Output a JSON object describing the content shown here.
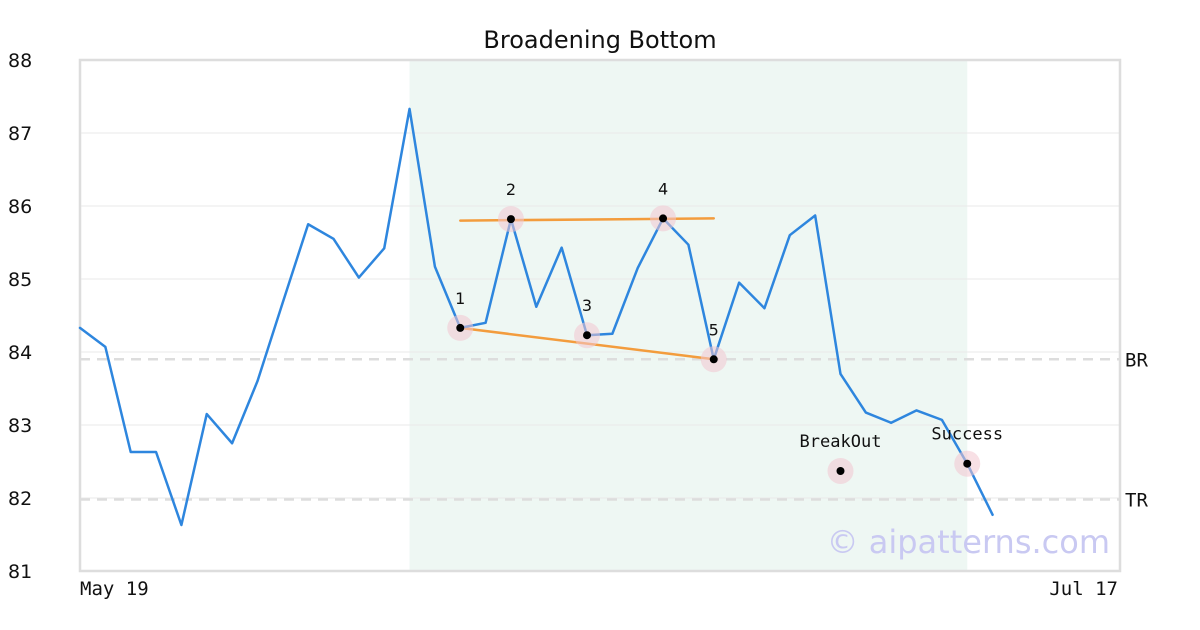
{
  "chart_data": {
    "type": "line",
    "title": "Broadening Bottom",
    "ylim": [
      81,
      88
    ],
    "yticks": [
      81,
      82,
      83,
      84,
      85,
      86,
      87,
      88
    ],
    "x_tick_labels": [
      "May 19",
      "Jul 17"
    ],
    "grid": true,
    "series": [
      {
        "color": "#2e86de",
        "values": [
          84.33,
          84.07,
          82.63,
          82.63,
          81.63,
          83.15,
          82.75,
          83.6,
          84.68,
          85.75,
          85.55,
          85.02,
          85.42,
          87.33,
          85.17,
          84.33,
          84.4,
          85.82,
          84.62,
          85.43,
          84.23,
          84.25,
          85.15,
          85.83,
          85.47,
          83.9,
          84.95,
          84.6,
          85.6,
          85.87,
          83.7,
          83.17,
          83.03,
          83.2,
          83.07,
          82.47,
          81.77
        ]
      }
    ],
    "pattern_region": {
      "x_start": 13,
      "x_end": 35,
      "color": "#eef7f3"
    },
    "trendlines": [
      {
        "color": "#f39c3d",
        "x": [
          15,
          25
        ],
        "y": [
          85.8,
          85.83
        ]
      },
      {
        "color": "#f39c3d",
        "x": [
          15,
          25
        ],
        "y": [
          84.33,
          83.9
        ]
      }
    ],
    "points": [
      {
        "label": "1",
        "x": 15,
        "y": 84.33
      },
      {
        "label": "2",
        "x": 17,
        "y": 85.82
      },
      {
        "label": "3",
        "x": 20,
        "y": 84.23
      },
      {
        "label": "4",
        "x": 23,
        "y": 85.83
      },
      {
        "label": "5",
        "x": 25,
        "y": 83.9
      }
    ],
    "annotations": [
      {
        "label": "BreakOut",
        "x": 30,
        "y": 82.37
      },
      {
        "label": "Success",
        "x": 35,
        "y": 82.47
      }
    ],
    "levels": [
      {
        "label": "BR",
        "y": 83.9
      },
      {
        "label": "TR",
        "y": 81.98
      }
    ],
    "watermark": "© aipatterns.com"
  }
}
